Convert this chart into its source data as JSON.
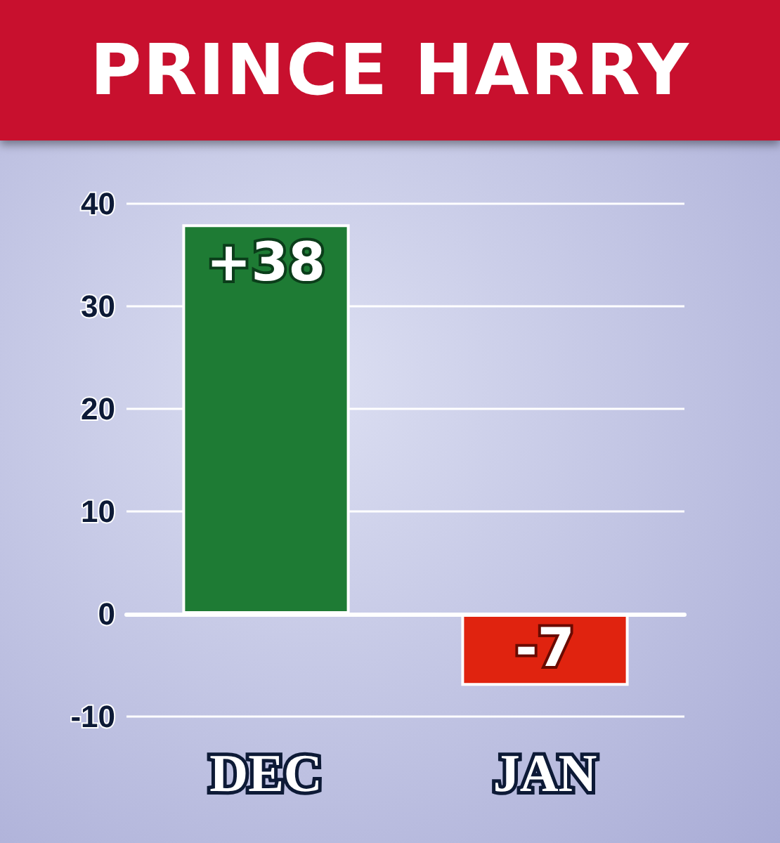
{
  "chart_data": {
    "type": "bar",
    "title": "PRINCE HARRY",
    "categories": [
      "DEC",
      "JAN"
    ],
    "series": [
      {
        "colors": [
          "#1e7b34",
          "#e0230f"
        ],
        "values": [
          38,
          -7
        ],
        "value_labels": [
          "+38",
          "-7"
        ]
      }
    ],
    "ylim": [
      -10,
      40
    ],
    "yticks": [
      -10,
      0,
      10,
      20,
      30,
      40
    ],
    "grid": "y"
  }
}
